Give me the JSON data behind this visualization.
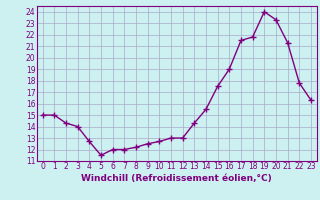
{
  "x": [
    0,
    1,
    2,
    3,
    4,
    5,
    6,
    7,
    8,
    9,
    10,
    11,
    12,
    13,
    14,
    15,
    16,
    17,
    18,
    19,
    20,
    21,
    22,
    23
  ],
  "y": [
    15,
    15,
    14.3,
    14,
    12.7,
    11.5,
    12,
    12,
    12.2,
    12.5,
    12.7,
    13,
    13,
    14.3,
    15.5,
    17.5,
    19,
    21.5,
    21.8,
    24,
    23.3,
    21.3,
    17.8,
    16.3
  ],
  "line_color": "#800080",
  "marker": "+",
  "bg_color": "#cdf0f0",
  "grid_color": "#aaaacc",
  "xlabel": "Windchill (Refroidissement éolien,°C)",
  "xlim": [
    -0.5,
    23.5
  ],
  "ylim": [
    11,
    24.5
  ],
  "yticks": [
    11,
    12,
    13,
    14,
    15,
    16,
    17,
    18,
    19,
    20,
    21,
    22,
    23,
    24
  ],
  "xticks": [
    0,
    1,
    2,
    3,
    4,
    5,
    6,
    7,
    8,
    9,
    10,
    11,
    12,
    13,
    14,
    15,
    16,
    17,
    18,
    19,
    20,
    21,
    22,
    23
  ],
  "line_width": 1.0,
  "marker_size": 4,
  "tick_label_color": "#800080",
  "axis_color": "#800080",
  "label_fontsize": 6.5,
  "tick_fontsize": 5.5
}
